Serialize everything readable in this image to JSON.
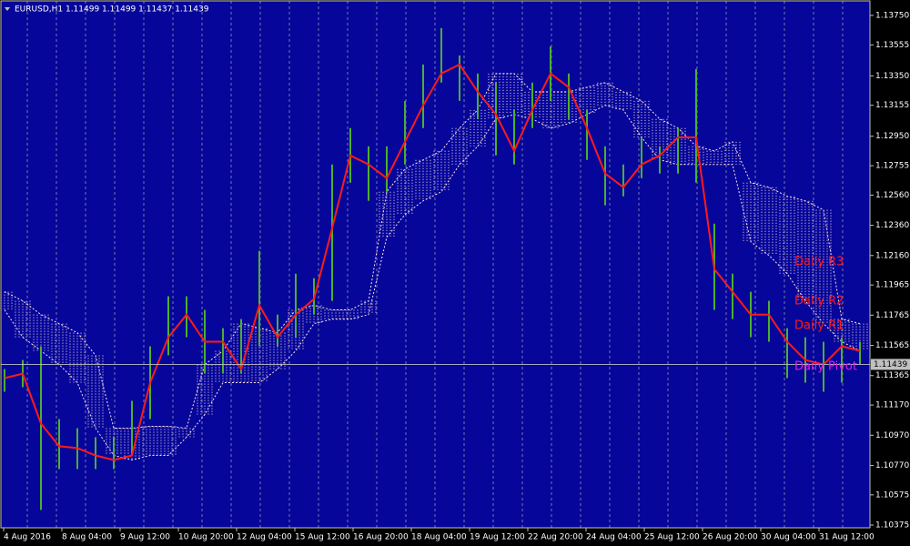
{
  "chart_data": {
    "type": "hl-bars",
    "header": "EURUSD,H1  1.11499 1.11499 1.11437 1.11439",
    "ylim": [
      1.10357,
      1.13846
    ],
    "yticks": [
      {
        "value": 1.1375,
        "label": "1.13750"
      },
      {
        "value": 1.13555,
        "label": "1.13555"
      },
      {
        "value": 1.1335,
        "label": "1.13350"
      },
      1.13155,
      {
        "value": 1.1295,
        "label": "1.12950"
      },
      1.12755,
      {
        "value": 1.1256,
        "label": "1.12560"
      },
      {
        "value": 1.1236,
        "label": "1.12360"
      },
      {
        "value": 1.1216,
        "label": "1.12160"
      },
      1.11965,
      1.11765,
      1.11565,
      1.11365,
      {
        "value": 1.1117,
        "label": "1.11170"
      },
      {
        "value": 1.1097,
        "label": "1.10970"
      },
      {
        "value": 1.1077,
        "label": "1.10770"
      },
      1.10575,
      1.10375
    ],
    "xtick_labels": [
      "4 Aug 2016",
      "8 Aug 04:00",
      "9 Aug 12:00",
      "10 Aug 20:00",
      "12 Aug 04:00",
      "15 Aug 12:00",
      "16 Aug 20:00",
      "18 Aug 04:00",
      "19 Aug 12:00",
      "22 Aug 20:00",
      "24 Aug 04:00",
      "25 Aug 12:00",
      "26 Aug 20:00",
      "30 Aug 04:00",
      "31 Aug 12:00"
    ],
    "last_price": 1.11439,
    "bar_color": "#4caf30",
    "high": [
      1.11408,
      1.11468,
      1.11559,
      1.11077,
      1.11017,
      1.10957,
      1.10957,
      1.11198,
      1.11559,
      1.1189,
      1.1189,
      1.118,
      1.11679,
      1.11739,
      1.12191,
      1.11769,
      1.1204,
      1.1201,
      1.12763,
      1.13004,
      1.12883,
      1.12883,
      1.13184,
      1.13425,
      1.13666,
      1.13485,
      1.13365,
      1.13305,
      1.13124,
      1.13305,
      1.13545,
      1.13365,
      1.13124,
      1.12883,
      1.12763,
      1.12943,
      1.12883,
      1.13004,
      1.13395,
      1.12371,
      1.1204,
      1.1192,
      1.1186,
      1.11679,
      1.11619,
      1.11589,
      1.11619,
      1.11589
    ],
    "low": [
      1.11258,
      1.11288,
      1.10475,
      1.10746,
      1.10746,
      1.10746,
      1.10746,
      1.10836,
      1.11077,
      1.11499,
      1.11619,
      1.11378,
      1.11378,
      1.11378,
      1.11559,
      1.11559,
      1.11619,
      1.11769,
      1.1186,
      1.12642,
      1.12522,
      1.12582,
      1.12763,
      1.13004,
      1.13305,
      1.13184,
      1.13064,
      1.12823,
      1.12763,
      1.13004,
      1.13184,
      1.13064,
      1.12793,
      1.12492,
      1.12552,
      1.12672,
      1.12703,
      1.12703,
      1.12642,
      1.118,
      1.11739,
      1.11619,
      1.11589,
      1.11348,
      1.11318,
      1.11258,
      1.11318,
      1.11438
    ],
    "line_color": "#ff1a1a",
    "line": [
      1.11348,
      1.11378,
      1.11047,
      1.10897,
      1.10885,
      1.10836,
      1.10806,
      1.10836,
      1.11318,
      1.11619,
      1.11769,
      1.11589,
      1.11589,
      1.11408,
      1.1183,
      1.11619,
      1.11769,
      1.11872,
      1.12341,
      1.12823,
      1.12763,
      1.12672,
      1.12913,
      1.13154,
      1.13365,
      1.13425,
      1.13244,
      1.13094,
      1.12853,
      1.13124,
      1.13365,
      1.13274,
      1.13004,
      1.12703,
      1.12612,
      1.12763,
      1.12823,
      1.12943,
      1.12943,
      1.1207,
      1.1192,
      1.11769,
      1.11769,
      1.11589,
      1.11468,
      1.11438,
      1.11559,
      1.11529
    ],
    "cloud_color": "#ffe4e4",
    "cloud_a": [
      1.1192,
      1.1186,
      1.11769,
      1.11709,
      1.11649,
      1.11499,
      1.11017,
      1.11017,
      1.11029,
      1.11029,
      1.11017,
      1.11438,
      1.11529,
      1.11709,
      1.11679,
      1.11649,
      1.118,
      1.1183,
      1.118,
      1.118,
      1.1186,
      1.12582,
      1.12733,
      1.12793,
      1.12853,
      1.13004,
      1.13124,
      1.13365,
      1.13365,
      1.13244,
      1.13244,
      1.13244,
      1.13274,
      1.13305,
      1.13244,
      1.13184,
      1.13064,
      1.13004,
      1.12883,
      1.12853,
      1.12913,
      1.12642,
      1.12612,
      1.12552,
      1.12522,
      1.12462,
      1.11739,
      1.11709
    ],
    "cloud_b": [
      1.118,
      1.11619,
      1.11529,
      1.11438,
      1.11318,
      1.11017,
      1.10836,
      1.10806,
      1.10836,
      1.10836,
      1.10957,
      1.11107,
      1.11318,
      1.11318,
      1.11318,
      1.11408,
      1.11529,
      1.11709,
      1.11739,
      1.11739,
      1.11769,
      1.12281,
      1.12432,
      1.12522,
      1.12582,
      1.12763,
      1.12883,
      1.13064,
      1.13094,
      1.13064,
      1.13004,
      1.13034,
      1.13094,
      1.13154,
      1.13124,
      1.12943,
      1.12793,
      1.12763,
      1.12763,
      1.12763,
      1.12763,
      1.12251,
      1.12161,
      1.1204,
      1.1186,
      1.11709,
      1.11589,
      1.11529
    ],
    "annotations": [
      {
        "text": "Daily R3",
        "color": "#ff1a1a"
      },
      {
        "text": "Daily R2",
        "color": "#ff1a1a"
      },
      {
        "text": "Daily R1",
        "color": "#ff1a1a"
      },
      {
        "text": "Daily Pivot",
        "color": "#e020e0"
      }
    ]
  }
}
